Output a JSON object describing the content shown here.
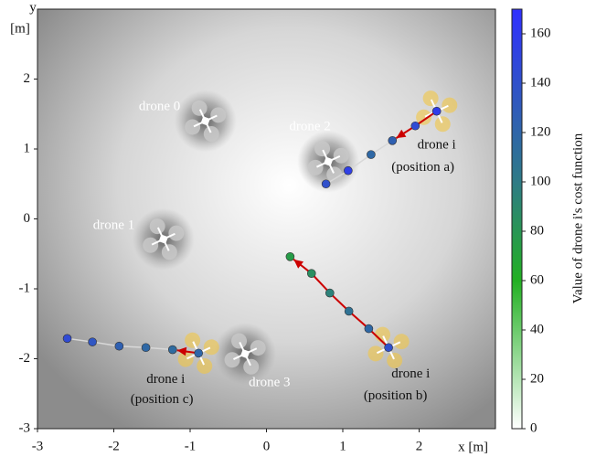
{
  "chart_data": {
    "type": "trajectory-map",
    "xlabel": "x [m]",
    "ylabel": [
      "y",
      "[m]"
    ],
    "xlim": [
      -3,
      3
    ],
    "ylim": [
      -3,
      3
    ],
    "xticks": [
      -3,
      -2,
      -1,
      0,
      1,
      2
    ],
    "yticks": [
      -3,
      -2,
      -1,
      0,
      1,
      2
    ],
    "obstacles": {
      "x": [
        -0.8,
        -1.35,
        0.81,
        -0.28
      ],
      "y": [
        1.4,
        -0.29,
        0.82,
        -1.93
      ],
      "color": "#c8c8c8"
    },
    "agent_color": "#f2c744",
    "arrow_color": "#cc0000",
    "trajectories": [
      {
        "x": [
          0.78,
          1.07,
          1.37,
          1.65,
          1.95,
          2.23
        ],
        "y": [
          0.5,
          0.69,
          0.92,
          1.12,
          1.33,
          1.54
        ],
        "values": [
          140,
          155,
          118,
          125,
          145,
          158
        ],
        "line_color": "#d8d8d8",
        "arrow_to": 3
      },
      {
        "x": [
          0.31,
          0.59,
          0.83,
          1.08,
          1.34,
          1.6
        ],
        "y": [
          -0.54,
          -0.78,
          -1.06,
          -1.32,
          -1.57,
          -1.84
        ],
        "values": [
          75,
          85,
          95,
          108,
          118,
          140
        ],
        "line_color": "#cc0000",
        "arrow_to": 0
      },
      {
        "x": [
          -2.61,
          -2.28,
          -1.93,
          -1.58,
          -1.23,
          -0.89
        ],
        "y": [
          -1.71,
          -1.76,
          -1.82,
          -1.84,
          -1.87,
          -1.92
        ],
        "values": [
          145,
          135,
          125,
          118,
          115,
          120
        ],
        "line_color": "#d8d8d8",
        "arrow_to": 4
      }
    ],
    "annotations": [
      {
        "text": "drone 0",
        "x": -1.4,
        "y": 1.6,
        "light": true
      },
      {
        "text": "drone 1",
        "x": -2.0,
        "y": -0.1,
        "light": true
      },
      {
        "text": "drone 2",
        "x": 0.57,
        "y": 1.31,
        "light": true
      },
      {
        "text": "drone 3",
        "x": 0.04,
        "y": -2.35,
        "light": true
      },
      {
        "text": "drone i",
        "x": 2.23,
        "y": 1.05,
        "light": false
      },
      {
        "text": "(position a)",
        "x": 2.05,
        "y": 0.73,
        "light": false
      },
      {
        "text": "drone i",
        "x": 1.89,
        "y": -2.22,
        "light": false
      },
      {
        "text": "(position b)",
        "x": 1.69,
        "y": -2.54,
        "light": false
      },
      {
        "text": "drone i",
        "x": -1.32,
        "y": -2.3,
        "light": false
      },
      {
        "text": "(position c)",
        "x": -1.37,
        "y": -2.59,
        "light": false
      }
    ],
    "colorbar": {
      "label": "Value of drone i's cost function",
      "clim": [
        0,
        170
      ],
      "ticks": [
        0,
        20,
        40,
        60,
        80,
        100,
        120,
        140,
        160
      ],
      "colormap": [
        {
          "value": 0,
          "color": "#ffffff"
        },
        {
          "value": 60,
          "color": "#22b022"
        },
        {
          "value": 100,
          "color": "#2f7b86"
        },
        {
          "value": 170,
          "color": "#3030ff"
        }
      ]
    }
  }
}
